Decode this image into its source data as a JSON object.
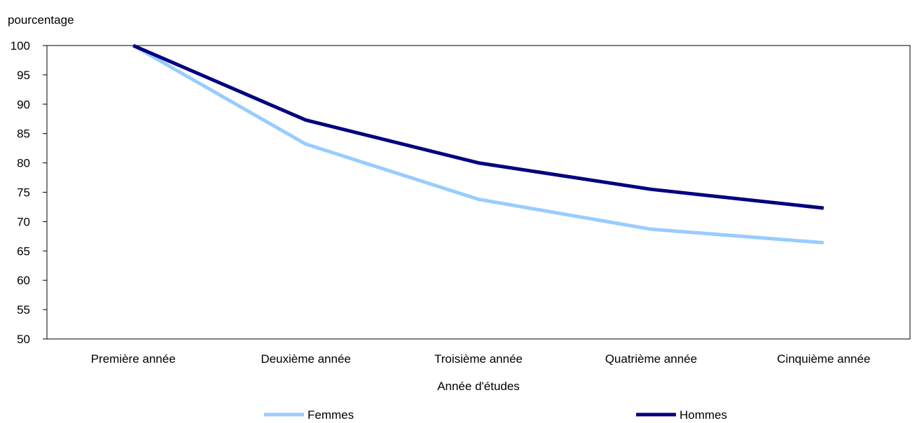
{
  "chart_data": {
    "type": "line",
    "ylabel": "pourcentage",
    "xlabel": "Année d'études",
    "categories": [
      "Première année",
      "Deuxième année",
      "Troisième année",
      "Quatrième année",
      "Cinquième année"
    ],
    "ylim": [
      50,
      100
    ],
    "yticks": [
      100,
      95,
      90,
      85,
      80,
      75,
      70,
      65,
      60,
      55,
      50
    ],
    "grid": false,
    "legend_position": "bottom",
    "series": [
      {
        "name": "Femmes",
        "color": "#99CCFF",
        "values": [
          100,
          83.2,
          73.8,
          68.7,
          66.4
        ]
      },
      {
        "name": "Hommes",
        "color": "#000080",
        "values": [
          100,
          87.3,
          80.0,
          75.5,
          72.3
        ]
      }
    ]
  }
}
